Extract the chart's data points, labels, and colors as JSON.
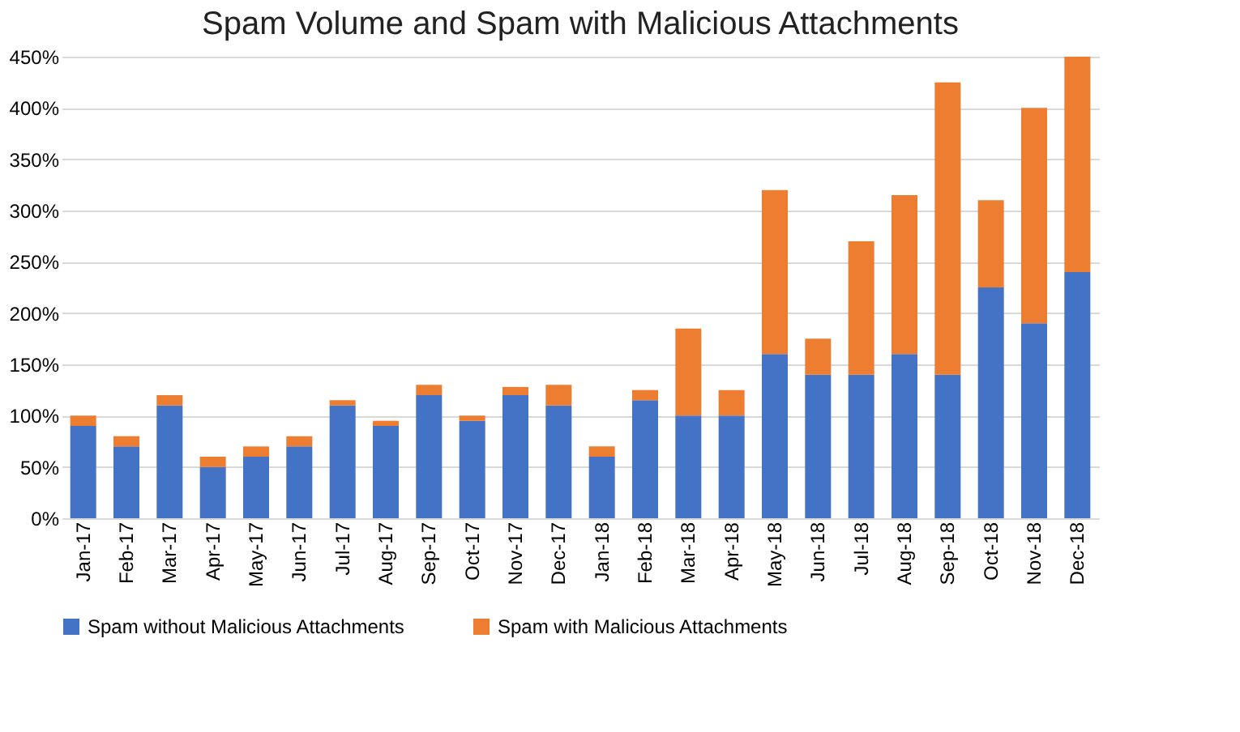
{
  "chart_data": {
    "type": "bar",
    "title": "Spam Volume and Spam with Malicious Attachments",
    "stacked": true,
    "grid": "y",
    "legend": "bottom",
    "categories": [
      "Jan-17",
      "Feb-17",
      "Mar-17",
      "Apr-17",
      "May-17",
      "Jun-17",
      "Jul-17",
      "Aug-17",
      "Sep-17",
      "Oct-17",
      "Nov-17",
      "Dec-17",
      "Jan-18",
      "Feb-18",
      "Mar-18",
      "Apr-18",
      "May-18",
      "Jun-18",
      "Jul-18",
      "Aug-18",
      "Sep-18",
      "Oct-18",
      "Nov-18",
      "Dec-18"
    ],
    "series": [
      {
        "name": "Spam without Malicious Attachments",
        "color": "#4472c4",
        "values": [
          90,
          70,
          110,
          50,
          60,
          70,
          110,
          90,
          120,
          95,
          120,
          110,
          60,
          115,
          100,
          100,
          160,
          140,
          140,
          160,
          140,
          225,
          190,
          240
        ]
      },
      {
        "name": "Spam with Malicious Attachments",
        "color": "#ed7d31",
        "values": [
          10,
          10,
          10,
          10,
          10,
          10,
          5,
          5,
          10,
          5,
          8,
          20,
          10,
          10,
          85,
          25,
          160,
          35,
          130,
          155,
          285,
          85,
          210,
          210
        ]
      }
    ],
    "ylim": [
      0,
      450
    ],
    "yticks": [
      {
        "value": 0,
        "label": "0%"
      },
      {
        "value": 50,
        "label": "50%"
      },
      {
        "value": 100,
        "label": "100%"
      },
      {
        "value": 150,
        "label": "150%"
      },
      {
        "value": 200,
        "label": "200%"
      },
      {
        "value": 250,
        "label": "250%"
      },
      {
        "value": 300,
        "label": "300%"
      },
      {
        "value": 350,
        "label": "350%"
      },
      {
        "value": 400,
        "label": "400%"
      },
      {
        "value": 450,
        "label": "450%"
      }
    ]
  }
}
